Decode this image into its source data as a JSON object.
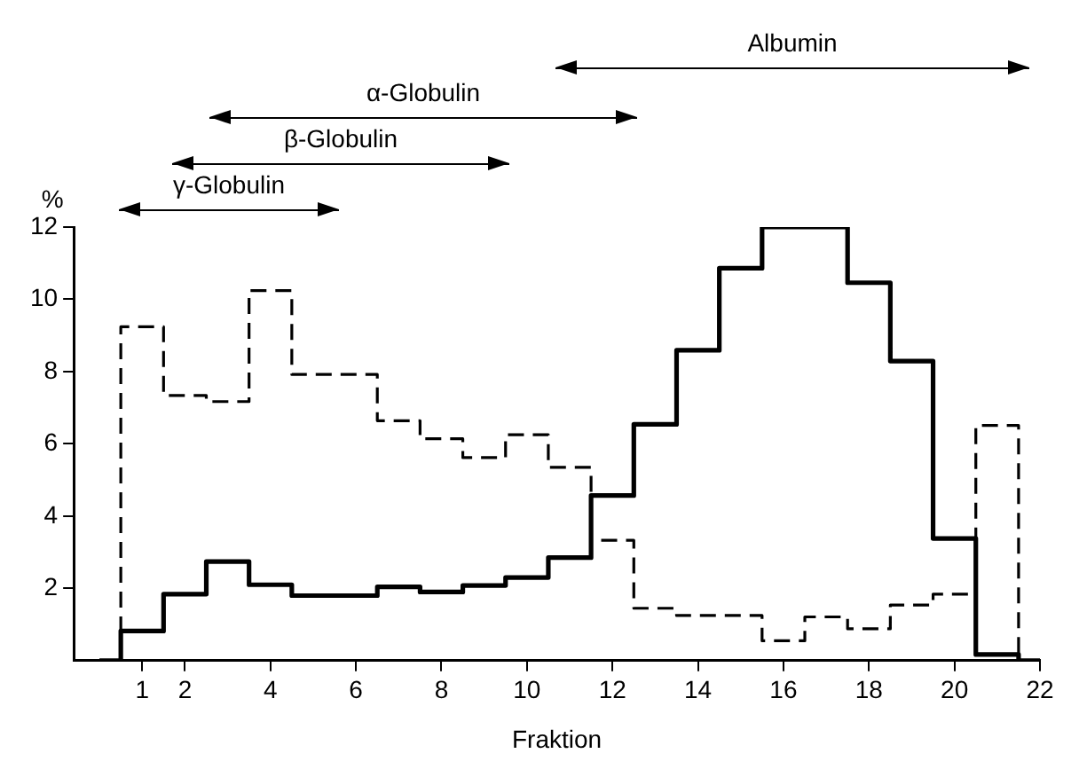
{
  "chart_data": {
    "type": "step",
    "xlabel": "Fraktion",
    "ylabel": "%",
    "x": [
      0,
      1,
      2,
      3,
      4,
      5,
      6,
      7,
      8,
      9,
      10,
      11,
      12,
      13,
      14,
      15,
      16,
      17,
      18,
      19,
      20,
      21,
      22
    ],
    "series": [
      {
        "color": "#000000",
        "line_style": "solid",
        "values": [
          0,
          0.82,
          1.84,
          2.74,
          2.1,
          1.8,
          1.8,
          2.04,
          1.9,
          2.08,
          2.3,
          2.85,
          4.57,
          6.54,
          8.59,
          10.86,
          12,
          12,
          10.46,
          8.29,
          3.38,
          0.17,
          0
        ]
      },
      {
        "color": "#000000",
        "line_style": "dashed",
        "values": [
          0,
          9.24,
          7.34,
          7.17,
          10.24,
          7.92,
          7.92,
          6.64,
          6.14,
          5.62,
          6.25,
          5.35,
          3.33,
          1.45,
          1.25,
          1.25,
          0.55,
          1.21,
          0.88,
          1.54,
          1.84,
          6.51,
          0
        ]
      }
    ],
    "annotations": [
      "Albumin",
      "α-Globulin",
      "β-Globulin",
      "γ-Globulin"
    ],
    "xlim": [
      -0.6,
      22
    ],
    "xticks": [
      1,
      2,
      4,
      6,
      8,
      10,
      12,
      14,
      16,
      18,
      20,
      22
    ],
    "ylim": [
      0,
      12
    ],
    "yticks": [
      2,
      4,
      6,
      8,
      10,
      12
    ],
    "grid": false,
    "legend": false
  }
}
